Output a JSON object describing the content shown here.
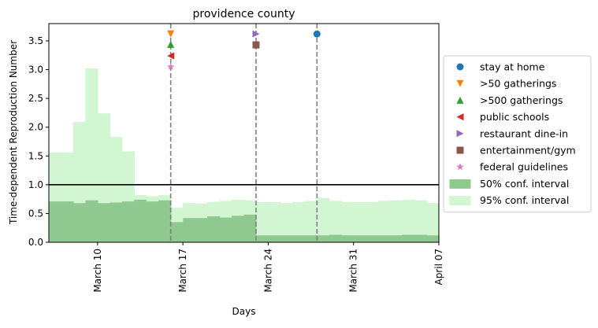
{
  "chart_data": {
    "type": "area",
    "title": "providence county",
    "xlabel": "Days",
    "ylabel": "Time-dependent Reproduction Number",
    "xlim": [
      "2020-03-06",
      "2020-04-07"
    ],
    "ylim": [
      0,
      3.8
    ],
    "x_ticks": [
      {
        "date": "2020-03-10",
        "label": "March 10"
      },
      {
        "date": "2020-03-17",
        "label": "March 17"
      },
      {
        "date": "2020-03-24",
        "label": "March 24"
      },
      {
        "date": "2020-03-31",
        "label": "March 31"
      },
      {
        "date": "2020-04-07",
        "label": "April 07"
      }
    ],
    "y_ticks": [
      0.0,
      0.5,
      1.0,
      1.5,
      2.0,
      2.5,
      3.0,
      3.5
    ],
    "y_tick_labels": [
      "0.0",
      "0.5",
      "1.0",
      "1.5",
      "2.0",
      "2.5",
      "3.0",
      "3.5"
    ],
    "reference_line": {
      "y": 1.0,
      "color": "#000000"
    },
    "dates": [
      "2020-03-06",
      "2020-03-07",
      "2020-03-08",
      "2020-03-09",
      "2020-03-10",
      "2020-03-11",
      "2020-03-12",
      "2020-03-13",
      "2020-03-14",
      "2020-03-15",
      "2020-03-16",
      "2020-03-17",
      "2020-03-18",
      "2020-03-19",
      "2020-03-20",
      "2020-03-21",
      "2020-03-22",
      "2020-03-23",
      "2020-03-24",
      "2020-03-25",
      "2020-03-26",
      "2020-03-27",
      "2020-03-28",
      "2020-03-29",
      "2020-03-30",
      "2020-03-31",
      "2020-04-01",
      "2020-04-02",
      "2020-04-03",
      "2020-04-04",
      "2020-04-05",
      "2020-04-06"
    ],
    "series": [
      {
        "name": "50% conf. interval",
        "color": "#90c990",
        "lower": [
          0,
          0,
          0,
          0,
          0,
          0,
          0,
          0,
          0,
          0,
          0,
          0,
          0,
          0,
          0,
          0,
          0,
          0,
          0,
          0,
          0,
          0,
          0,
          0,
          0,
          0,
          0,
          0,
          0,
          0,
          0,
          0
        ],
        "upper": [
          0.71,
          0.71,
          0.68,
          0.73,
          0.68,
          0.69,
          0.71,
          0.74,
          0.71,
          0.73,
          0.35,
          0.42,
          0.42,
          0.45,
          0.43,
          0.46,
          0.48,
          0.12,
          0.12,
          0.12,
          0.12,
          0.12,
          0.12,
          0.13,
          0.12,
          0.12,
          0.12,
          0.12,
          0.12,
          0.13,
          0.13,
          0.12
        ]
      },
      {
        "name": "95% conf. interval",
        "color": "#d1f6d1",
        "lower": [
          0,
          0,
          0,
          0,
          0,
          0,
          0,
          0,
          0,
          0,
          0,
          0,
          0,
          0,
          0,
          0,
          0,
          0,
          0,
          0,
          0,
          0,
          0,
          0,
          0,
          0,
          0,
          0,
          0,
          0,
          0,
          0
        ],
        "upper": [
          1.56,
          1.56,
          2.09,
          3.02,
          2.24,
          1.83,
          1.58,
          0.82,
          0.8,
          0.82,
          0.6,
          0.68,
          0.67,
          0.7,
          0.72,
          0.74,
          0.73,
          0.7,
          0.7,
          0.68,
          0.7,
          0.72,
          0.77,
          0.72,
          0.7,
          0.7,
          0.7,
          0.72,
          0.73,
          0.74,
          0.73,
          0.68
        ]
      }
    ],
    "events": [
      {
        "date": "2020-03-16",
        "markers": [
          {
            "label": ">50 gatherings",
            "y": 3.62
          },
          {
            "label": ">500 gatherings",
            "y": 3.44
          },
          {
            "label": "public schools",
            "y": 3.24
          },
          {
            "label": "federal guidelines",
            "y": 3.05
          }
        ]
      },
      {
        "date": "2020-03-23",
        "markers": [
          {
            "label": "restaurant dine-in",
            "y": 3.62
          },
          {
            "label": "entertainment/gym",
            "y": 3.43
          }
        ]
      },
      {
        "date": "2020-03-28",
        "markers": [
          {
            "label": "stay at home",
            "y": 3.62
          }
        ]
      }
    ],
    "legend": {
      "placement": "right",
      "entries": [
        {
          "label": "stay at home",
          "marker": "circle",
          "color": "#1f77b4"
        },
        {
          "label": ">50 gatherings",
          "marker": "triangle-down",
          "color": "#ff7f0e"
        },
        {
          "label": ">500 gatherings",
          "marker": "triangle-up",
          "color": "#2ca02c"
        },
        {
          "label": "public schools",
          "marker": "triangle-left",
          "color": "#d62728"
        },
        {
          "label": "restaurant dine-in",
          "marker": "triangle-right",
          "color": "#9467bd"
        },
        {
          "label": "entertainment/gym",
          "marker": "square",
          "color": "#8c564b"
        },
        {
          "label": "federal guidelines",
          "marker": "star",
          "color": "#e377c2"
        },
        {
          "label": "50% conf. interval",
          "marker": "patch",
          "color": "#90c990"
        },
        {
          "label": "95% conf. interval",
          "marker": "patch",
          "color": "#d1f6d1"
        }
      ]
    },
    "grid": false
  }
}
